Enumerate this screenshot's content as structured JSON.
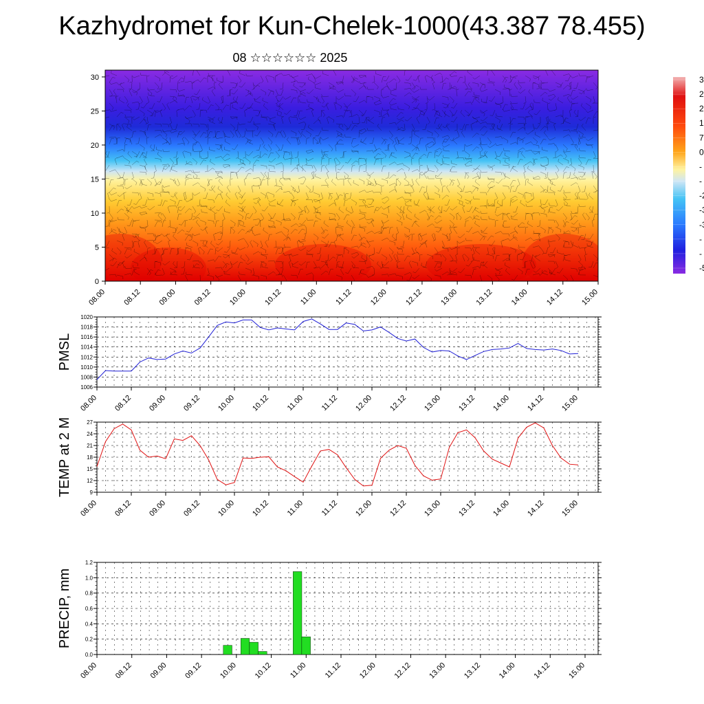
{
  "header": {
    "title": "Kazhydromet for Kun-Chelek-1000(43.387 78.455)",
    "subtitle": "08 ☆☆☆☆☆☆ 2025"
  },
  "chart_data": [
    {
      "type": "heatmap",
      "title": "",
      "xlabel": "",
      "ylabel": "",
      "x_ticks": [
        "08.00",
        "08.12",
        "09.00",
        "09.12",
        "10.00",
        "10.12",
        "11.00",
        "11.12",
        "12.00",
        "12.12",
        "13.00",
        "13.12",
        "14.00",
        "14.12",
        "15.00"
      ],
      "y_ticks": [
        "0",
        "5",
        "10",
        "15",
        "20",
        "25",
        "30"
      ],
      "ylim": [
        0,
        31
      ],
      "colorbar_labels": [
        "3",
        "2",
        "2",
        "1",
        "7",
        "0",
        "-",
        "-",
        "-2",
        "-3",
        "-3",
        "-",
        "-",
        "-5"
      ],
      "overlay": "wind barbs",
      "colormap": [
        "#8a2be2",
        "#2020e0",
        "#2b7bff",
        "#45c3f5",
        "#cfe6f5",
        "#fff3a0",
        "#ffcc33",
        "#ff8c1a",
        "#ff3d0d",
        "#e00000"
      ]
    },
    {
      "type": "line",
      "ylabel": "PMSL",
      "color": "#1f1fd6",
      "ylim": [
        1006,
        1020
      ],
      "y_ticks": [
        "1006",
        "1008",
        "1010",
        "1012",
        "1014",
        "1016",
        "1018",
        "1020"
      ],
      "x_ticks": [
        "08.00",
        "08.12",
        "09.00",
        "09.12",
        "10.00",
        "10.12",
        "11.00",
        "11.12",
        "12.00",
        "12.12",
        "13.00",
        "13.12",
        "14.00",
        "14.12",
        "15.00"
      ],
      "x_hours": [
        0,
        3,
        6,
        9,
        12,
        15,
        18,
        21,
        24,
        27,
        30,
        33,
        36,
        39,
        42,
        45,
        48,
        51,
        54,
        57,
        60,
        63,
        66,
        69,
        72,
        75,
        78,
        81,
        84,
        87,
        90,
        93,
        96,
        99,
        102,
        105,
        108,
        111,
        114,
        117,
        120,
        123,
        126,
        129,
        132,
        135,
        138,
        141,
        144,
        147,
        150,
        153,
        156,
        159,
        162,
        165,
        168
      ],
      "values": [
        1007.5,
        1009.3,
        1009.2,
        1009.2,
        1009.2,
        1011.0,
        1011.8,
        1011.5,
        1011.6,
        1012.6,
        1013.2,
        1012.8,
        1013.8,
        1016.0,
        1018.3,
        1019.0,
        1018.8,
        1019.4,
        1019.4,
        1017.9,
        1017.4,
        1017.8,
        1017.6,
        1017.4,
        1019.1,
        1019.6,
        1018.6,
        1017.5,
        1017.5,
        1018.8,
        1018.5,
        1017.2,
        1017.4,
        1018.0,
        1016.9,
        1015.7,
        1015.2,
        1015.6,
        1013.9,
        1013.0,
        1013.3,
        1013.2,
        1012.2,
        1011.5,
        1012.3,
        1013.1,
        1013.5,
        1013.6,
        1013.8,
        1014.7,
        1013.7,
        1013.5,
        1013.4,
        1013.6,
        1013.3,
        1012.6,
        1012.7
      ]
    },
    {
      "type": "line",
      "ylabel": "TEMP at 2 M",
      "color": "#e01010",
      "ylim": [
        9,
        27
      ],
      "y_ticks": [
        "9",
        "12",
        "15",
        "18",
        "21",
        "24",
        "27"
      ],
      "x_ticks": [
        "08.00",
        "08.12",
        "09.00",
        "09.12",
        "10.00",
        "10.12",
        "11.00",
        "11.12",
        "12.00",
        "12.12",
        "13.00",
        "13.12",
        "14.00",
        "14.12",
        "15.00"
      ],
      "x_hours": [
        0,
        3,
        6,
        9,
        12,
        15,
        18,
        21,
        24,
        27,
        30,
        33,
        36,
        39,
        42,
        45,
        48,
        51,
        54,
        57,
        60,
        63,
        66,
        69,
        72,
        75,
        78,
        81,
        84,
        87,
        90,
        93,
        96,
        99,
        102,
        105,
        108,
        111,
        114,
        117,
        120,
        123,
        126,
        129,
        132,
        135,
        138,
        141,
        144,
        147,
        150,
        153,
        156,
        159,
        162,
        165,
        168
      ],
      "values": [
        15.6,
        22.0,
        25.3,
        26.5,
        25.0,
        19.8,
        18.0,
        18.3,
        17.6,
        22.7,
        22.3,
        23.5,
        21.0,
        17.3,
        12.3,
        10.9,
        11.5,
        17.8,
        17.7,
        18.0,
        18.1,
        15.5,
        14.5,
        13.0,
        11.6,
        15.7,
        19.6,
        20.0,
        18.6,
        15.3,
        12.3,
        10.6,
        10.8,
        17.7,
        19.8,
        21.0,
        20.3,
        15.9,
        13.2,
        12.1,
        12.4,
        20.5,
        24.3,
        25.0,
        23.0,
        19.6,
        17.5,
        16.5,
        15.5,
        22.9,
        25.7,
        26.8,
        25.5,
        21.0,
        17.8,
        16.2,
        16.0
      ]
    },
    {
      "type": "bar",
      "ylabel": "PRECIP, mm",
      "color": "#22dd22",
      "ylim": [
        0,
        1.2
      ],
      "y_ticks": [
        "0.0",
        "0.2",
        "0.4",
        "0.6",
        "0.8",
        "1.0",
        "1.2"
      ],
      "x_ticks": [
        "08.00",
        "08.12",
        "09.00",
        "09.12",
        "10.00",
        "10.12",
        "11.00",
        "11.12",
        "12.00",
        "12.12",
        "13.00",
        "13.12",
        "14.00",
        "14.12",
        "15.00"
      ],
      "bar_hours": [
        45,
        51,
        54,
        57,
        69,
        72
      ],
      "values": [
        0.12,
        0.21,
        0.16,
        0.04,
        1.08,
        0.23
      ]
    }
  ]
}
